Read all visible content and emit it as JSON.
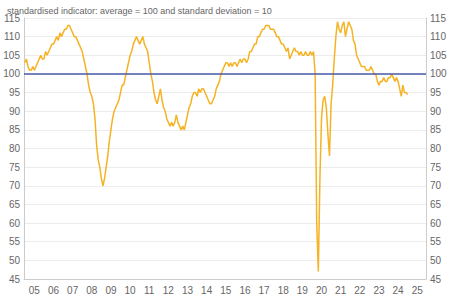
{
  "chart_data": {
    "type": "line",
    "title": "standardised indicator: average = 100 and standard deviation = 10",
    "color": "#f5b324",
    "grid": true,
    "ylim": [
      45,
      115
    ],
    "yticks": [
      45,
      50,
      55,
      60,
      65,
      70,
      75,
      80,
      85,
      90,
      95,
      100,
      105,
      110,
      115
    ],
    "reference_line": {
      "value": 100,
      "color": "#4a5ba8"
    },
    "categories": [
      null,
      null,
      null,
      null,
      null,
      null,
      "05",
      null,
      null,
      null,
      null,
      null,
      null,
      null,
      null,
      null,
      null,
      null,
      "06",
      null,
      null,
      null,
      null,
      null,
      null,
      null,
      null,
      null,
      null,
      null,
      "07",
      null,
      null,
      null,
      null,
      null,
      null,
      null,
      null,
      null,
      null,
      null,
      "08",
      null,
      null,
      null,
      null,
      null,
      null,
      null,
      null,
      null,
      null,
      null,
      "09",
      null,
      null,
      null,
      null,
      null,
      null,
      null,
      null,
      null,
      null,
      null,
      "10",
      null,
      null,
      null,
      null,
      null,
      null,
      null,
      null,
      null,
      null,
      null,
      "11",
      null,
      null,
      null,
      null,
      null,
      null,
      null,
      null,
      null,
      null,
      null,
      "12",
      null,
      null,
      null,
      null,
      null,
      null,
      null,
      null,
      null,
      null,
      null,
      "13",
      null,
      null,
      null,
      null,
      null,
      null,
      null,
      null,
      null,
      null,
      null,
      "14",
      null,
      null,
      null,
      null,
      null,
      null,
      null,
      null,
      null,
      null,
      null,
      "15",
      null,
      null,
      null,
      null,
      null,
      null,
      null,
      null,
      null,
      null,
      null,
      "16",
      null,
      null,
      null,
      null,
      null,
      null,
      null,
      null,
      null,
      null,
      null,
      "17",
      null,
      null,
      null,
      null,
      null,
      null,
      null,
      null,
      null,
      null,
      null,
      "18",
      null,
      null,
      null,
      null,
      null,
      null,
      null,
      null,
      null,
      null,
      null,
      "19",
      null,
      null,
      null,
      null,
      null,
      null,
      null,
      null,
      null,
      null,
      null,
      "20",
      null,
      null,
      null,
      null,
      null,
      null,
      null,
      null,
      null,
      null,
      null,
      "21",
      null,
      null,
      null,
      null,
      null,
      null,
      null,
      null,
      null,
      null,
      null,
      "22",
      null,
      null,
      null,
      null,
      null,
      null,
      null,
      null,
      null,
      null,
      null,
      "23",
      null,
      null,
      null,
      null,
      null,
      null,
      null,
      null,
      null,
      null,
      null,
      "24",
      null,
      null,
      null,
      null,
      null,
      null,
      null,
      null,
      null,
      null,
      null,
      "25",
      null,
      null,
      null,
      null,
      null
    ],
    "values": [
      103,
      104,
      102,
      101,
      101,
      102,
      101,
      102,
      103,
      104,
      105,
      104,
      104,
      106,
      105,
      106,
      107,
      108,
      108,
      109,
      110,
      109,
      111,
      110,
      111,
      112,
      112,
      113,
      113,
      112,
      111,
      110,
      110,
      109,
      108,
      107,
      106,
      104,
      102,
      100,
      97,
      95,
      94,
      92,
      88,
      81,
      77,
      75,
      72,
      70,
      72,
      75,
      78,
      82,
      85,
      88,
      90,
      91,
      92,
      93,
      95,
      97,
      97,
      99,
      101,
      103,
      105,
      106,
      108,
      109,
      110,
      109,
      108,
      109,
      110,
      108,
      107,
      106,
      103,
      100,
      98,
      95,
      93,
      92,
      94,
      96,
      93,
      91,
      90,
      88,
      87,
      86,
      87,
      86,
      87,
      89,
      87,
      86,
      85,
      86,
      85,
      87,
      89,
      91,
      92,
      94,
      95,
      95,
      94,
      96,
      95,
      96,
      96,
      95,
      94,
      93,
      92,
      92,
      93,
      94,
      96,
      97,
      98,
      100,
      101,
      102,
      103,
      103,
      102,
      103,
      102,
      103,
      103,
      102,
      103,
      104,
      103,
      104,
      104,
      103,
      104,
      106,
      106,
      107,
      108,
      108,
      110,
      110,
      111,
      112,
      112,
      113,
      113,
      113,
      112,
      112,
      112,
      111,
      110,
      110,
      109,
      108,
      108,
      107,
      106,
      107,
      104,
      105,
      106,
      107,
      106,
      106,
      105,
      106,
      105,
      105,
      106,
      105,
      105,
      106,
      105,
      106,
      100,
      60,
      47,
      72,
      88,
      93,
      94,
      91,
      84,
      78,
      92,
      97,
      104,
      110,
      114,
      112,
      111,
      113,
      114,
      110,
      112,
      114,
      113,
      112,
      109,
      108,
      105,
      104,
      103,
      102,
      102,
      102,
      101,
      101,
      101,
      102,
      101,
      100,
      100,
      98,
      97,
      98,
      98,
      99,
      98,
      98,
      99,
      99,
      100,
      99,
      98,
      99,
      98,
      96,
      94,
      97,
      95,
      95,
      94.5,
      null,
      null,
      null,
      null,
      null,
      null,
      null,
      null,
      null,
      null,
      null
    ]
  }
}
